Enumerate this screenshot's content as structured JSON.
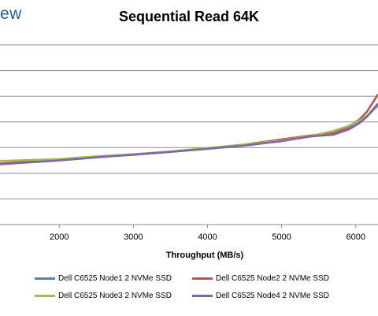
{
  "brand_fragment": "ew",
  "chart_data": {
    "type": "line",
    "title": "Sequential Read 64K",
    "xlabel": "Throughput (MB/s)",
    "ylabel": "",
    "xlim": [
      1200,
      6300
    ],
    "ylim": [
      0,
      7
    ],
    "x_ticks": [
      2000,
      3000,
      4000,
      5000,
      6000
    ],
    "y_gridlines": [
      1,
      2,
      3,
      4,
      5,
      6,
      7
    ],
    "grid": true,
    "legend_position": "bottom",
    "series": [
      {
        "name": "Dell C6525 Node1 2 NVMe SSD",
        "color": "#4f81bd",
        "x": [
          1200,
          2000,
          2500,
          3000,
          3500,
          4000,
          4500,
          5000,
          5400,
          5700,
          5900,
          6050,
          6150,
          6230,
          6300
        ],
        "y": [
          2.38,
          2.52,
          2.63,
          2.72,
          2.83,
          2.97,
          3.1,
          3.28,
          3.44,
          3.52,
          3.72,
          3.98,
          4.22,
          4.48,
          4.72
        ]
      },
      {
        "name": "Dell C6525 Node2 2 NVMe SSD",
        "color": "#c0504d",
        "x": [
          1200,
          2000,
          2500,
          3000,
          3500,
          4000,
          4500,
          5000,
          5400,
          5700,
          5900,
          6050,
          6150,
          6230,
          6300
        ],
        "y": [
          2.38,
          2.52,
          2.64,
          2.74,
          2.85,
          2.98,
          3.12,
          3.32,
          3.48,
          3.56,
          3.8,
          4.1,
          4.4,
          4.75,
          5.08
        ]
      },
      {
        "name": "Dell C6525 Node3 2 NVMe SSD",
        "color": "#9bbb59",
        "x": [
          1200,
          2000,
          2500,
          3000,
          3500,
          4000,
          4500,
          5000,
          5400,
          5700,
          5900,
          6050,
          6150,
          6230,
          6300
        ],
        "y": [
          2.48,
          2.55,
          2.66,
          2.74,
          2.85,
          2.98,
          3.12,
          3.28,
          3.46,
          3.65,
          3.84,
          4.05,
          4.25,
          4.45,
          4.62
        ]
      },
      {
        "name": "Dell C6525 Node4 2 NVMe SSD",
        "color": "#8064a2",
        "x": [
          1200,
          2000,
          2500,
          3000,
          3500,
          4000,
          4500,
          5000,
          5400,
          5700,
          5900,
          6050,
          6150,
          6230,
          6300
        ],
        "y": [
          2.35,
          2.5,
          2.62,
          2.72,
          2.83,
          2.95,
          3.08,
          3.25,
          3.44,
          3.5,
          3.7,
          3.95,
          4.2,
          4.45,
          4.7
        ]
      }
    ]
  }
}
